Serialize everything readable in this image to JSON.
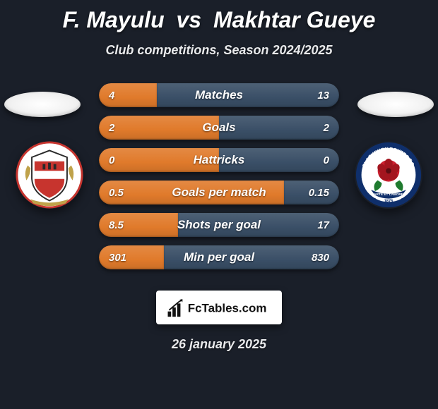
{
  "title": {
    "player1": "F. Mayulu",
    "vs": "vs",
    "player2": "Makhtar Gueye"
  },
  "subtitle": "Club competitions, Season 2024/2025",
  "date": "26 january 2025",
  "brand": "FcTables.com",
  "colors": {
    "bg": "#1a1f29",
    "bar_left": "#e07a2b",
    "bar_right": "#3a4f67",
    "bar_right_alt": "#2f4157"
  },
  "badges": {
    "left_flag_bg": "#f0f0f0",
    "right_flag_bg": "#f0f0f0"
  },
  "stats": [
    {
      "label": "Matches",
      "left_val": "4",
      "right_val": "13",
      "left_pct": 24,
      "right_pct": 76
    },
    {
      "label": "Goals",
      "left_val": "2",
      "right_val": "2",
      "left_pct": 50,
      "right_pct": 50
    },
    {
      "label": "Hattricks",
      "left_val": "0",
      "right_val": "0",
      "left_pct": 50,
      "right_pct": 50
    },
    {
      "label": "Goals per match",
      "left_val": "0.5",
      "right_val": "0.15",
      "left_pct": 77,
      "right_pct": 23
    },
    {
      "label": "Shots per goal",
      "left_val": "8.5",
      "right_val": "17",
      "left_pct": 33,
      "right_pct": 67
    },
    {
      "label": "Min per goal",
      "left_val": "301",
      "right_val": "830",
      "left_pct": 27,
      "right_pct": 73
    }
  ]
}
